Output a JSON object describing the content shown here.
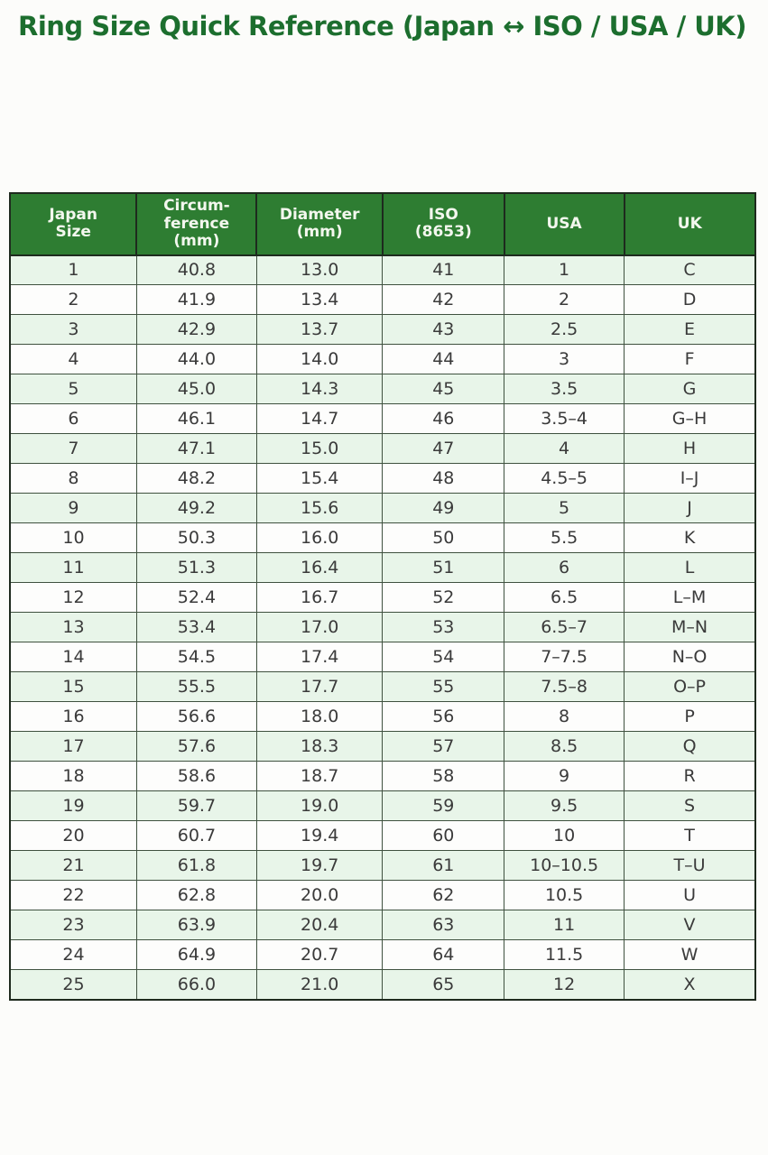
{
  "title": "Ring Size Quick Reference (Japan ↔ ISO / USA / UK)",
  "colors": {
    "page_bg": "#fcfcfa",
    "title_green": "#1c6e2e",
    "header_bg": "#2e7d32",
    "header_text": "#f3f7ee",
    "row_alt_bg": "#e8f5e9",
    "row_bg": "#fdfdfc",
    "border_dark": "#1e2a1e",
    "border_inner": "#3f513f",
    "cell_text": "#3a3a3a"
  },
  "table": {
    "headers": [
      "Japan\nSize",
      "Circum-\nference\n(mm)",
      "Diameter\n(mm)",
      "ISO\n(8653)",
      "USA",
      "UK"
    ],
    "rows": [
      [
        "1",
        "40.8",
        "13.0",
        "41",
        "1",
        "C"
      ],
      [
        "2",
        "41.9",
        "13.4",
        "42",
        "2",
        "D"
      ],
      [
        "3",
        "42.9",
        "13.7",
        "43",
        "2.5",
        "E"
      ],
      [
        "4",
        "44.0",
        "14.0",
        "44",
        "3",
        "F"
      ],
      [
        "5",
        "45.0",
        "14.3",
        "45",
        "3.5",
        "G"
      ],
      [
        "6",
        "46.1",
        "14.7",
        "46",
        "3.5–4",
        "G–H"
      ],
      [
        "7",
        "47.1",
        "15.0",
        "47",
        "4",
        "H"
      ],
      [
        "8",
        "48.2",
        "15.4",
        "48",
        "4.5–5",
        "I–J"
      ],
      [
        "9",
        "49.2",
        "15.6",
        "49",
        "5",
        "J"
      ],
      [
        "10",
        "50.3",
        "16.0",
        "50",
        "5.5",
        "K"
      ],
      [
        "11",
        "51.3",
        "16.4",
        "51",
        "6",
        "L"
      ],
      [
        "12",
        "52.4",
        "16.7",
        "52",
        "6.5",
        "L–M"
      ],
      [
        "13",
        "53.4",
        "17.0",
        "53",
        "6.5–7",
        "M–N"
      ],
      [
        "14",
        "54.5",
        "17.4",
        "54",
        "7–7.5",
        "N–O"
      ],
      [
        "15",
        "55.5",
        "17.7",
        "55",
        "7.5–8",
        "O–P"
      ],
      [
        "16",
        "56.6",
        "18.0",
        "56",
        "8",
        "P"
      ],
      [
        "17",
        "57.6",
        "18.3",
        "57",
        "8.5",
        "Q"
      ],
      [
        "18",
        "58.6",
        "18.7",
        "58",
        "9",
        "R"
      ],
      [
        "19",
        "59.7",
        "19.0",
        "59",
        "9.5",
        "S"
      ],
      [
        "20",
        "60.7",
        "19.4",
        "60",
        "10",
        "T"
      ],
      [
        "21",
        "61.8",
        "19.7",
        "61",
        "10–10.5",
        "T–U"
      ],
      [
        "22",
        "62.8",
        "20.0",
        "62",
        "10.5",
        "U"
      ],
      [
        "23",
        "63.9",
        "20.4",
        "63",
        "11",
        "V"
      ],
      [
        "24",
        "64.9",
        "20.7",
        "64",
        "11.5",
        "W"
      ],
      [
        "25",
        "66.0",
        "21.0",
        "65",
        "12",
        "X"
      ]
    ]
  }
}
